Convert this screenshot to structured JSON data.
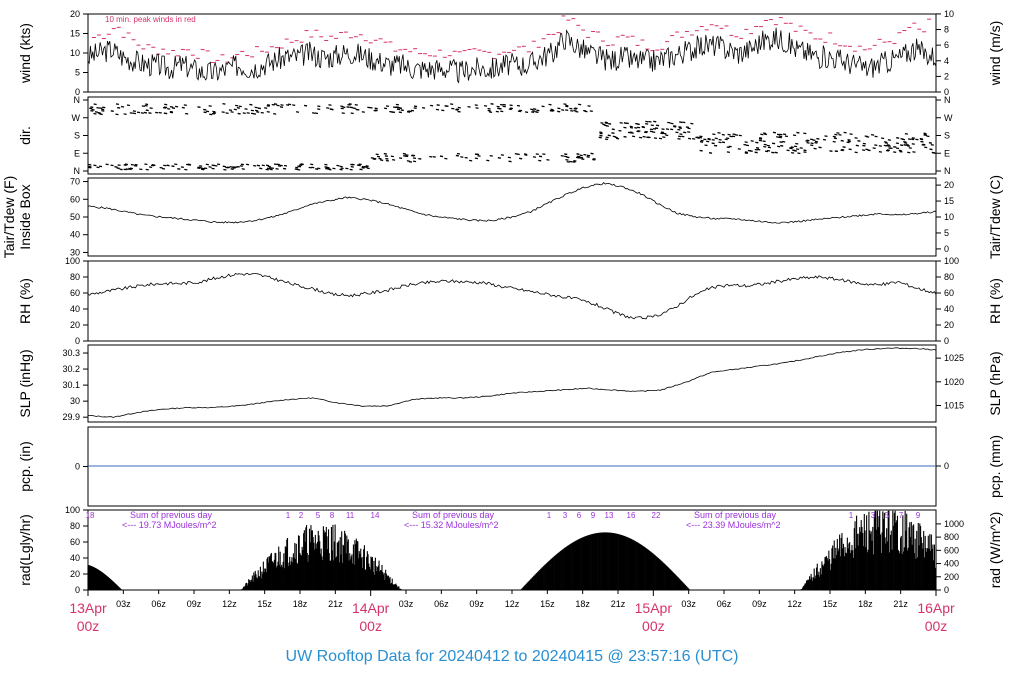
{
  "footer": "UW Rooftop Data for 20240412  to  20240415 @ 23:57:16  (UTC)",
  "colors": {
    "red": "#d6336c",
    "purple": "#9b30d9",
    "blue": "#2a8fd0",
    "zero": "#3b6bb5"
  },
  "chart_data": [
    {
      "type": "line",
      "ylabel_left": "wind (kts)",
      "ylabel_right": "wind (m/s)",
      "yticks_left": [
        0,
        5,
        10,
        15,
        20
      ],
      "yticks_right": [
        0,
        2,
        4,
        6,
        8,
        10
      ],
      "annotation": "10 min. peak winds in red",
      "ylim": [
        0,
        20
      ],
      "series": [
        {
          "values": [
            9,
            10,
            11,
            9,
            8,
            7,
            7,
            6,
            7,
            6,
            5,
            5,
            6,
            7,
            6,
            7,
            8,
            9,
            9,
            10,
            9,
            9,
            10,
            10,
            9,
            8,
            7,
            7,
            6,
            6,
            6,
            6,
            5,
            6,
            6,
            6,
            7,
            7,
            7,
            9,
            10,
            14,
            12,
            10,
            9,
            8,
            9,
            8,
            8,
            8,
            9,
            10,
            11,
            12,
            12,
            11,
            10,
            11,
            13,
            14,
            13,
            11,
            10,
            9,
            9,
            8,
            7,
            6,
            7,
            8,
            9,
            11,
            10,
            9
          ]
        },
        {
          "values": [
            14,
            15,
            17,
            14,
            12,
            11,
            11,
            10,
            11,
            10,
            9,
            8,
            9,
            10,
            10,
            11,
            12,
            13,
            14,
            15,
            14,
            14,
            15,
            15,
            14,
            13,
            11,
            11,
            10,
            10,
            10,
            10,
            9,
            10,
            10,
            10,
            11,
            11,
            11,
            14,
            15,
            19,
            17,
            15,
            14,
            13,
            14,
            13,
            12,
            12,
            13,
            15,
            16,
            17,
            18,
            16,
            15,
            16,
            18,
            19,
            18,
            16,
            15,
            14,
            14,
            13,
            12,
            11,
            12,
            13,
            14,
            17,
            15,
            19
          ]
        }
      ]
    },
    {
      "type": "scatter",
      "ylabel_left": "dir.",
      "yticks_left": [
        "N",
        "E",
        "S",
        "W",
        "N"
      ],
      "yticks_right": [
        "N",
        "E",
        "S",
        "W",
        "N"
      ]
    },
    {
      "type": "line",
      "ylabel_left": "Inside Box",
      "ylabel_outer": "Tair/Tdew (F)",
      "ylabel_right": "Tair/Tdew (C)",
      "yticks_left": [
        30,
        40,
        50,
        60,
        70
      ],
      "yticks_right": [
        0,
        5,
        10,
        15,
        20
      ],
      "ylim": [
        28,
        72
      ],
      "series": [
        {
          "values": [
            56,
            55,
            53,
            51,
            50,
            49,
            48,
            47,
            47,
            48,
            50,
            53,
            57,
            59,
            61,
            60,
            58,
            55,
            52,
            50,
            49,
            48,
            48,
            50,
            53,
            58,
            63,
            67,
            69,
            67,
            63,
            57,
            52,
            50,
            49,
            49,
            48,
            47,
            47,
            48,
            49,
            50,
            51,
            52,
            51,
            52,
            53
          ]
        }
      ]
    },
    {
      "type": "line",
      "ylabel_left": "RH (%)",
      "ylabel_right": "RH (%)",
      "yticks_left": [
        0,
        20,
        40,
        60,
        80,
        100
      ],
      "yticks_right": [
        0,
        20,
        40,
        60,
        80,
        100
      ],
      "ylim": [
        0,
        100
      ],
      "series": [
        {
          "values": [
            58,
            62,
            66,
            70,
            72,
            72,
            74,
            80,
            84,
            83,
            77,
            70,
            65,
            58,
            57,
            60,
            64,
            70,
            73,
            75,
            74,
            73,
            68,
            64,
            60,
            56,
            52,
            45,
            35,
            28,
            30,
            40,
            55,
            66,
            70,
            69,
            72,
            76,
            79,
            80,
            76,
            72,
            70,
            74,
            66,
            60
          ]
        }
      ]
    },
    {
      "type": "line",
      "ylabel_left": "SLP (inHg)",
      "ylabel_right": "SLP (hPa)",
      "yticks_left": [
        29.9,
        30.0,
        30.1,
        30.2,
        30.3
      ],
      "yticks_right": [
        1015,
        1020,
        1025
      ],
      "ylim": [
        29.87,
        30.35
      ],
      "series": [
        {
          "values": [
            29.91,
            29.9,
            29.93,
            29.95,
            29.96,
            29.96,
            29.97,
            29.99,
            30.01,
            30.02,
            29.99,
            29.97,
            29.97,
            30.01,
            30.02,
            30.02,
            30.03,
            30.05,
            30.06,
            30.07,
            30.08,
            30.07,
            30.06,
            30.07,
            30.12,
            30.18,
            30.2,
            30.22,
            30.24,
            30.27,
            30.3,
            30.32,
            30.33,
            30.33,
            30.32
          ]
        }
      ]
    },
    {
      "type": "line",
      "ylabel_left": "pcp. (in)",
      "ylabel_right": "pcp. (mm)",
      "yticks_left": [
        0
      ],
      "yticks_right": [
        0
      ],
      "series": [
        {
          "values": [
            0,
            0
          ]
        }
      ]
    },
    {
      "type": "area",
      "ylabel_left": "rad(Lgly/hr)",
      "ylabel_right": "rad (W/m^2)",
      "yticks_left": [
        0,
        20,
        40,
        60,
        80,
        100
      ],
      "yticks_right": [
        0,
        200,
        400,
        600,
        800,
        1000
      ],
      "ylim": [
        0,
        100
      ],
      "sums": [
        {
          "label": "Sum of previous day",
          "value": "<--- 19.73 MJoules/m^2"
        },
        {
          "label": "Sum of previous day",
          "value": "<--- 15.32 MJoules/m^2"
        },
        {
          "label": "Sum of previous day",
          "value": "<--- 23.39 MJoules/m^2"
        }
      ],
      "hour_labels": [
        "18",
        "1",
        "2",
        "5",
        "8",
        "11",
        "14",
        "1",
        "3",
        "6",
        "9",
        "13",
        "16",
        "22",
        "1",
        "3",
        "5",
        "7",
        "9"
      ]
    }
  ],
  "x_axis": {
    "hour_ticks": [
      "03z",
      "06z",
      "09z",
      "12z",
      "15z",
      "18z",
      "21z",
      "03z",
      "06z",
      "09z",
      "12z",
      "15z",
      "18z",
      "21z",
      "03z",
      "06z",
      "09z",
      "12z",
      "15z",
      "18z",
      "21z"
    ],
    "days": [
      {
        "date": "13Apr",
        "time": "00z"
      },
      {
        "date": "14Apr",
        "time": "00z"
      },
      {
        "date": "15Apr",
        "time": "00z"
      },
      {
        "date": "16Apr",
        "time": "00z"
      }
    ]
  }
}
